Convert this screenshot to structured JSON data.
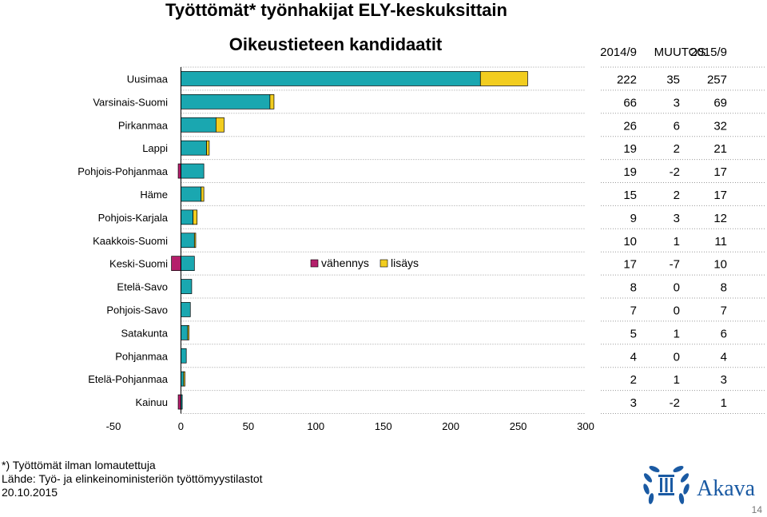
{
  "header": {
    "title": "Työttömät* työnhakijat ELY-keskuksittain",
    "subtitle": "Oikeustieteen kandidaatit"
  },
  "colors": {
    "base": "#1aa7b0",
    "increase": "#f2cd1f",
    "decrease": "#b41f6b",
    "logo": "#1a5aa3"
  },
  "chart_data": {
    "type": "bar",
    "orientation": "horizontal",
    "stacked": true,
    "categories": [
      "Uusimaa",
      "Varsinais-Suomi",
      "Pirkanmaa",
      "Lappi",
      "Pohjois-Pohjanmaa",
      "Häme",
      "Pohjois-Karjala",
      "Kaakkois-Suomi",
      "Keski-Suomi",
      "Etelä-Savo",
      "Pohjois-Savo",
      "Satakunta",
      "Pohjanmaa",
      "Etelä-Pohjanmaa",
      "Kainuu"
    ],
    "series": [
      {
        "name": "",
        "role": "base",
        "values": [
          222,
          66,
          26,
          19,
          17,
          15,
          9,
          10,
          10,
          8,
          7,
          5,
          4,
          2,
          1
        ]
      },
      {
        "name": "lisäys",
        "role": "increase",
        "values": [
          35,
          3,
          6,
          2,
          0,
          2,
          3,
          1,
          0,
          0,
          0,
          1,
          0,
          1,
          0
        ]
      },
      {
        "name": "vähennys",
        "role": "decrease",
        "values": [
          0,
          0,
          0,
          0,
          -2,
          0,
          0,
          0,
          -7,
          0,
          0,
          0,
          0,
          0,
          -2
        ]
      }
    ],
    "xlim": [
      -50,
      300
    ],
    "xticks": [
      "-50",
      "0",
      "50",
      "100",
      "150",
      "200",
      "250",
      "300"
    ],
    "grid": "horizontal dotted",
    "legend": {
      "position": "center",
      "entries": [
        "vähennys",
        "lisäys"
      ]
    },
    "table": {
      "columns": [
        "2014/9",
        "MUUTOS",
        "2015/9"
      ],
      "rows": [
        [
          "222",
          "35",
          "257"
        ],
        [
          "66",
          "3",
          "69"
        ],
        [
          "26",
          "6",
          "32"
        ],
        [
          "19",
          "2",
          "21"
        ],
        [
          "19",
          "-2",
          "17"
        ],
        [
          "15",
          "2",
          "17"
        ],
        [
          "9",
          "3",
          "12"
        ],
        [
          "10",
          "1",
          "11"
        ],
        [
          "17",
          "-7",
          "10"
        ],
        [
          "8",
          "0",
          "8"
        ],
        [
          "7",
          "0",
          "7"
        ],
        [
          "5",
          "1",
          "6"
        ],
        [
          "4",
          "0",
          "4"
        ],
        [
          "2",
          "1",
          "3"
        ],
        [
          "3",
          "-2",
          "1"
        ]
      ]
    }
  },
  "footer": {
    "note": "*) Työttömät ilman lomautettuja",
    "source": "Lähde: Työ- ja elinkeinoministeriön työttömyystilastot",
    "date": "20.10.2015",
    "logo_text": "Akava",
    "page_number": "14"
  }
}
